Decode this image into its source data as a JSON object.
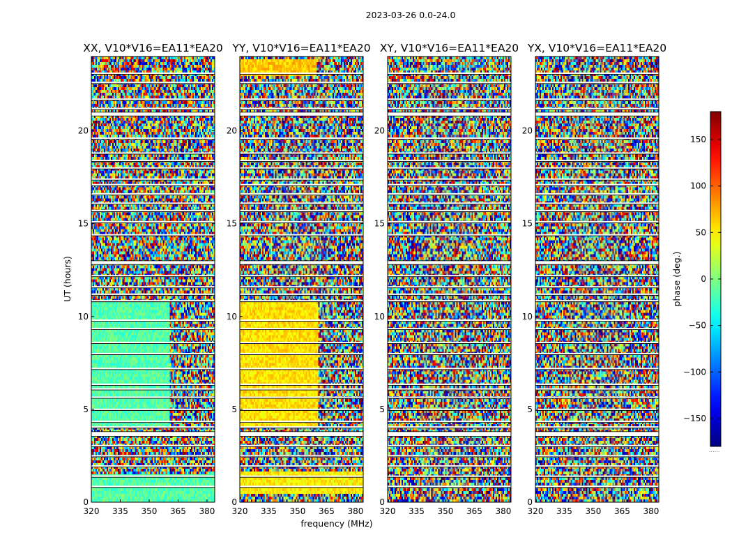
{
  "figure": {
    "suptitle": "2023-03-26 0.0-24.0",
    "xlabel": "frequency (MHz)",
    "ylabel": "UT (hours)",
    "colorbar_label": "phase (deg.)",
    "colorbar_dots": "......"
  },
  "chart_data": [
    {
      "type": "heatmap",
      "title": "XX, V10*V16=EA11*EA20",
      "x_ticks": [
        320,
        335,
        350,
        365,
        380
      ],
      "y_ticks": [
        0,
        5,
        10,
        15,
        20
      ],
      "xlim": [
        320,
        384
      ],
      "ylim": [
        0,
        24
      ],
      "colormap": "jet",
      "regions": [
        {
          "ut": [
            4.0,
            10.8
          ],
          "freq": [
            320,
            361
          ],
          "phase_deg": -15
        },
        {
          "ut": [
            0.0,
            1.5
          ],
          "freq": [
            320,
            384
          ],
          "phase_deg": -15
        }
      ]
    },
    {
      "type": "heatmap",
      "title": "YY, V10*V16=EA11*EA20",
      "x_ticks": [
        320,
        335,
        350,
        365,
        380
      ],
      "y_ticks": [
        0,
        5,
        10,
        15,
        20
      ],
      "xlim": [
        320,
        384
      ],
      "ylim": [
        0,
        24
      ],
      "colormap": "jet",
      "regions": [
        {
          "ut": [
            4.0,
            10.8
          ],
          "freq": [
            320,
            361
          ],
          "phase_deg": 55
        },
        {
          "ut": [
            0.5,
            1.6
          ],
          "freq": [
            320,
            384
          ],
          "phase_deg": 50
        },
        {
          "ut": [
            23.0,
            23.8
          ],
          "freq": [
            320,
            360
          ],
          "phase_deg": 65
        }
      ]
    },
    {
      "type": "heatmap",
      "title": "XY, V10*V16=EA11*EA20",
      "x_ticks": [
        320,
        335,
        350,
        365,
        380
      ],
      "y_ticks": [
        0,
        5,
        10,
        15,
        20
      ],
      "xlim": [
        320,
        384
      ],
      "ylim": [
        0,
        24
      ],
      "colormap": "jet",
      "regions": []
    },
    {
      "type": "heatmap",
      "title": "YX, V10*V16=EA11*EA20",
      "x_ticks": [
        320,
        335,
        350,
        365,
        380
      ],
      "y_ticks": [
        0,
        5,
        10,
        15,
        20
      ],
      "xlim": [
        320,
        384
      ],
      "ylim": [
        0,
        24
      ],
      "colormap": "jet",
      "regions": []
    }
  ],
  "colorbar": {
    "range": [
      -180,
      180
    ],
    "ticks": [
      -150,
      -100,
      -50,
      0,
      50,
      100,
      150
    ],
    "tick_labels": [
      "−150",
      "−100",
      "−50",
      "0",
      "50",
      "100",
      "150"
    ],
    "colormap": "jet"
  },
  "flagged_ut_bands": [
    [
      3.55,
      3.8
    ],
    [
      12.8,
      13.0
    ],
    [
      20.8,
      21.0
    ]
  ],
  "flagged_ut_lines": [
    0.85,
    1.4,
    1.95,
    2.5,
    3.05,
    4.05,
    4.35,
    5.0,
    5.65,
    6.1,
    6.35,
    7.2,
    8.0,
    8.6,
    9.35,
    9.8,
    10.85,
    11.2,
    11.6,
    12.2,
    14.4,
    15.1,
    15.7,
    16.1,
    16.6,
    17.1,
    17.4,
    18.0,
    18.4,
    18.8,
    19.6,
    21.2,
    21.7,
    22.6,
    23.1
  ]
}
